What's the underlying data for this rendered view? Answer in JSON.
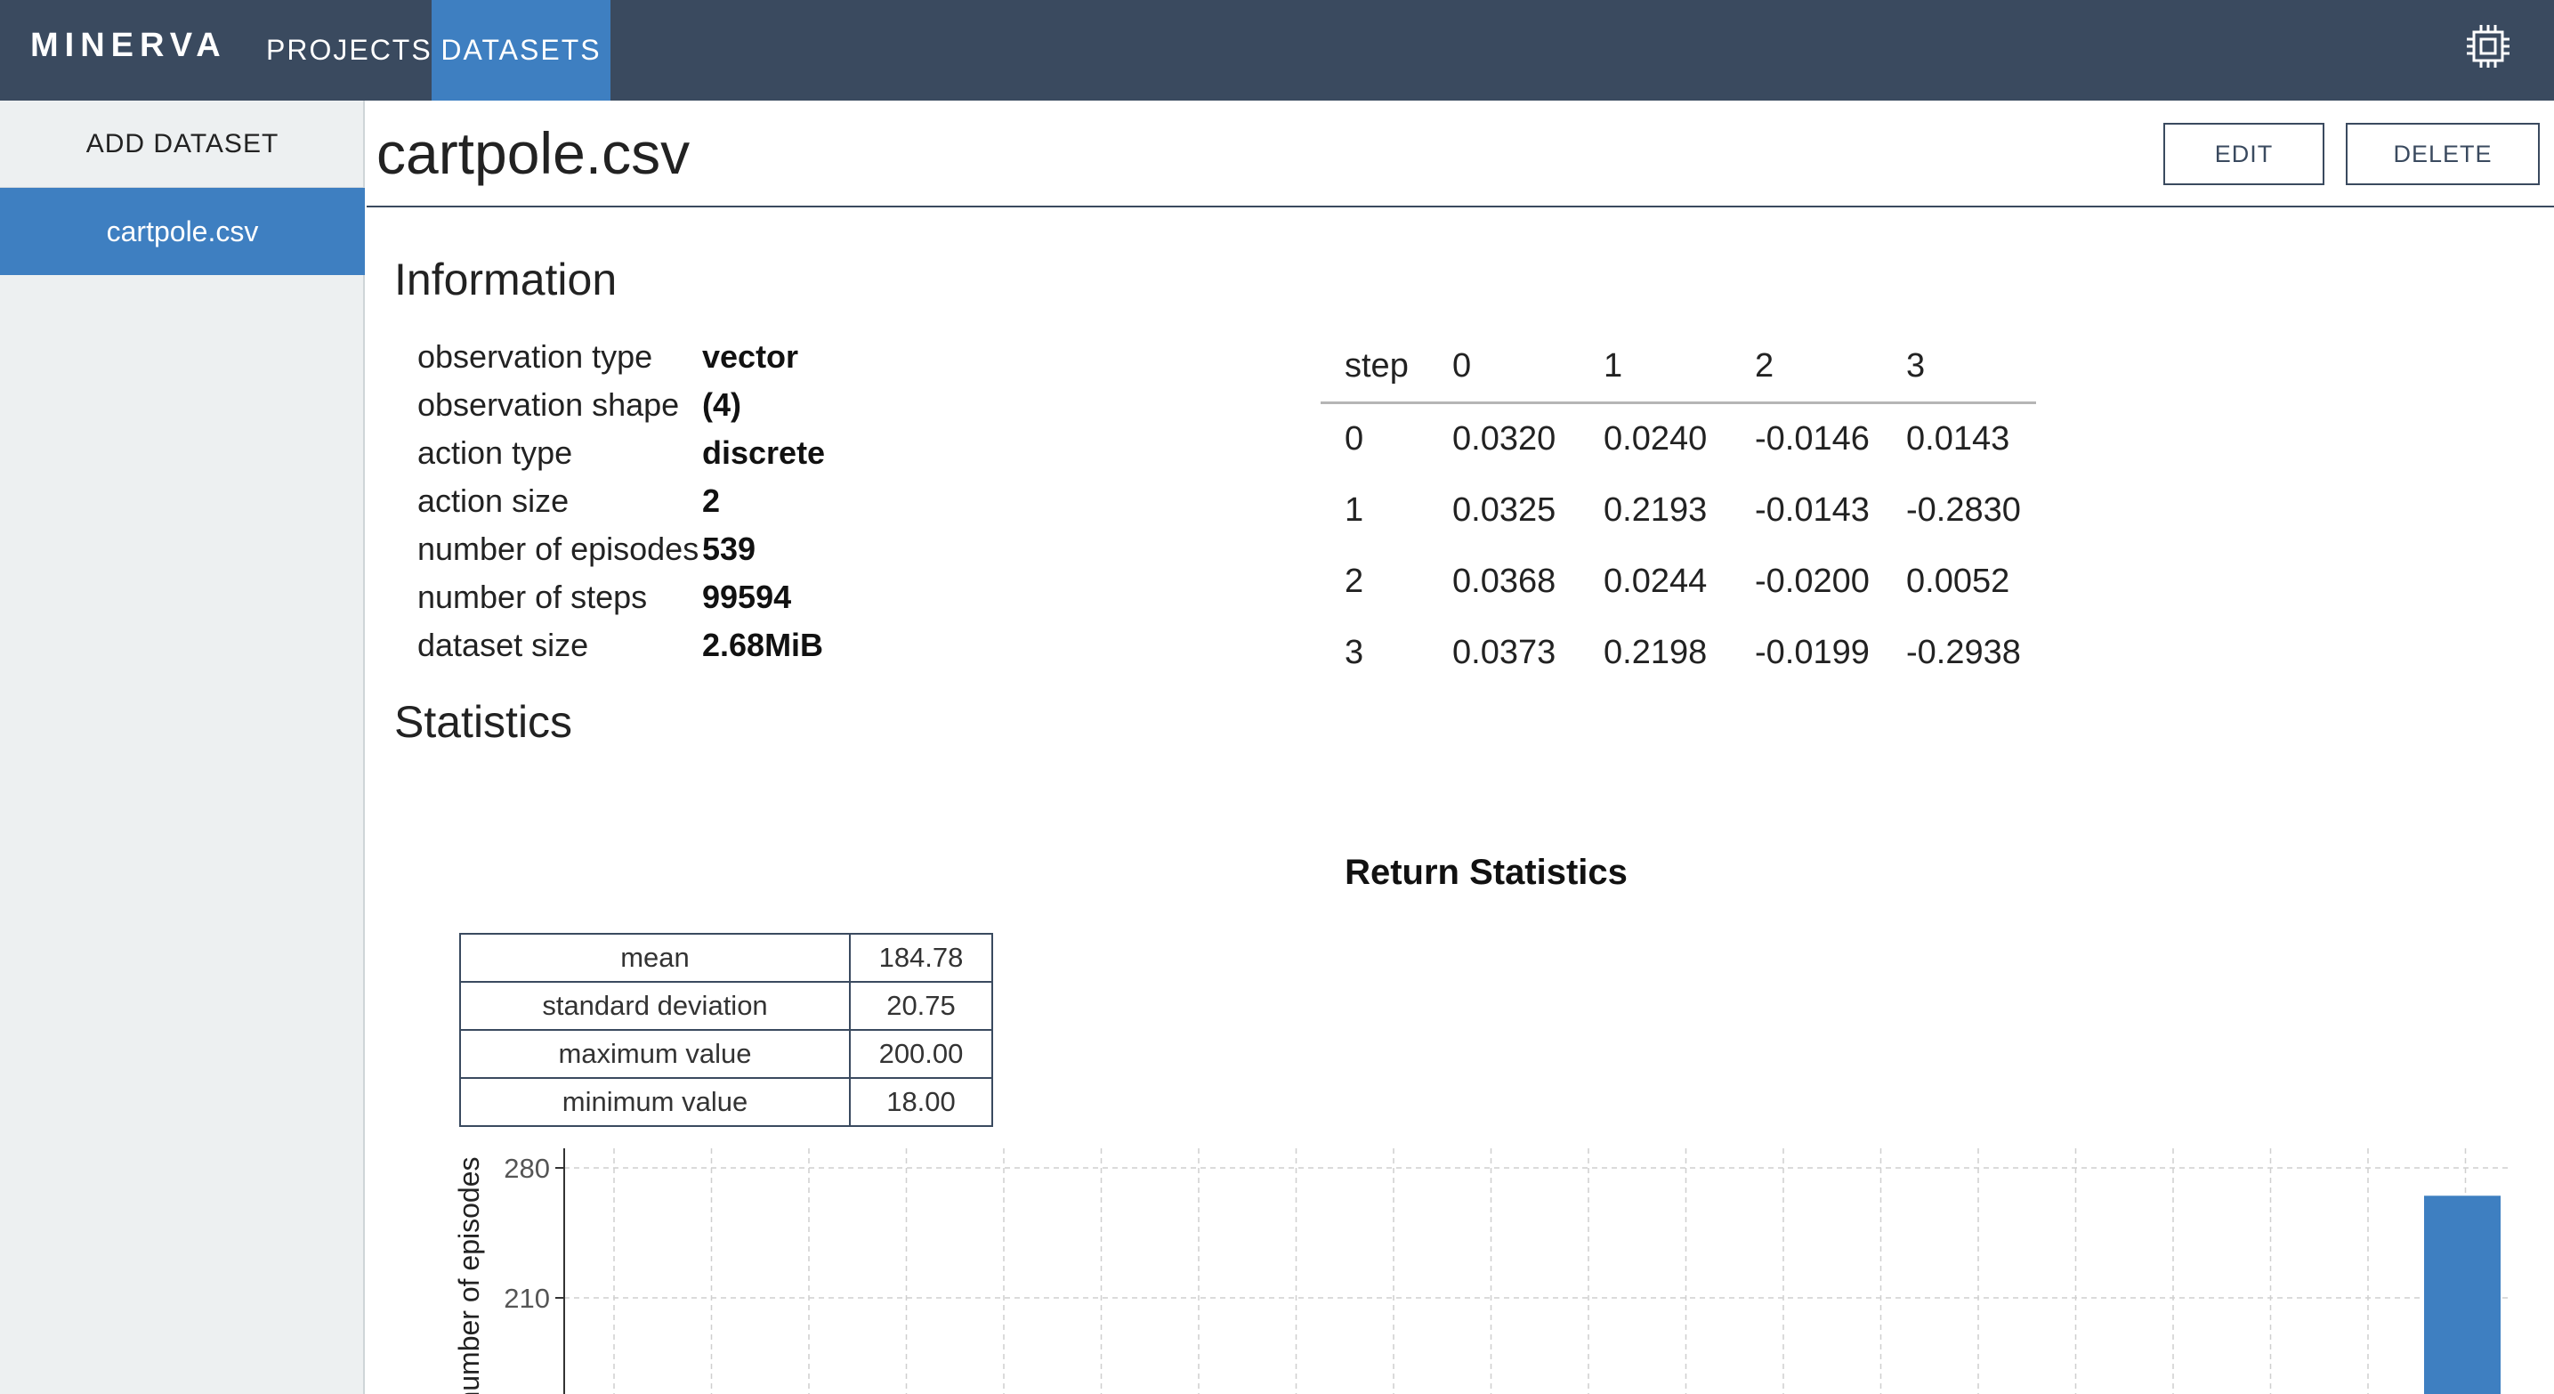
{
  "navbar": {
    "brand": "MINERVA",
    "tabs": [
      {
        "label": "PROJECTS"
      },
      {
        "label": "DATASETS"
      }
    ],
    "active_tab": "DATASETS",
    "settings_icon": "chip-icon"
  },
  "sidebar": {
    "add_label": "ADD DATASET",
    "items": [
      {
        "label": "cartpole.csv",
        "active": true
      }
    ]
  },
  "header": {
    "title": "cartpole.csv",
    "edit_label": "EDIT",
    "delete_label": "DELETE"
  },
  "information": {
    "heading": "Information",
    "rows": [
      {
        "key": "observation type",
        "value": "vector"
      },
      {
        "key": "observation shape",
        "value": "(4)"
      },
      {
        "key": "action type",
        "value": "discrete"
      },
      {
        "key": "action size",
        "value": "2"
      },
      {
        "key": "number of episodes",
        "value": "539"
      },
      {
        "key": "number of steps",
        "value": "99594"
      },
      {
        "key": "dataset size",
        "value": "2.68MiB"
      }
    ]
  },
  "sample_table": {
    "headers": [
      "step",
      "0",
      "1",
      "2",
      "3"
    ],
    "rows": [
      [
        "0",
        "0.0320",
        "0.0240",
        "-0.0146",
        "0.0143"
      ],
      [
        "1",
        "0.0325",
        "0.2193",
        "-0.0143",
        "-0.2830"
      ],
      [
        "2",
        "0.0368",
        "0.0244",
        "-0.0200",
        "0.0052"
      ],
      [
        "3",
        "0.0373",
        "0.2198",
        "-0.0199",
        "-0.2938"
      ]
    ]
  },
  "statistics": {
    "heading": "Statistics",
    "return_title": "Return Statistics",
    "table": [
      {
        "key": "mean",
        "value": "184.78"
      },
      {
        "key": "standard deviation",
        "value": "20.75"
      },
      {
        "key": "maximum value",
        "value": "200.00"
      },
      {
        "key": "minimum value",
        "value": "18.00"
      }
    ]
  },
  "chart_data": {
    "type": "bar",
    "ylabel": "number of episodes",
    "ylim": [
      140,
      280
    ],
    "yticks": [
      210,
      280
    ],
    "grid": true,
    "bar_color": "#3e7fc1",
    "series": [
      {
        "x_bin": "last",
        "value": 265
      }
    ]
  },
  "colors": {
    "navbar": "#3a4a5f",
    "accent": "#3e7fc1",
    "sidebar_bg": "#edf0f1"
  }
}
